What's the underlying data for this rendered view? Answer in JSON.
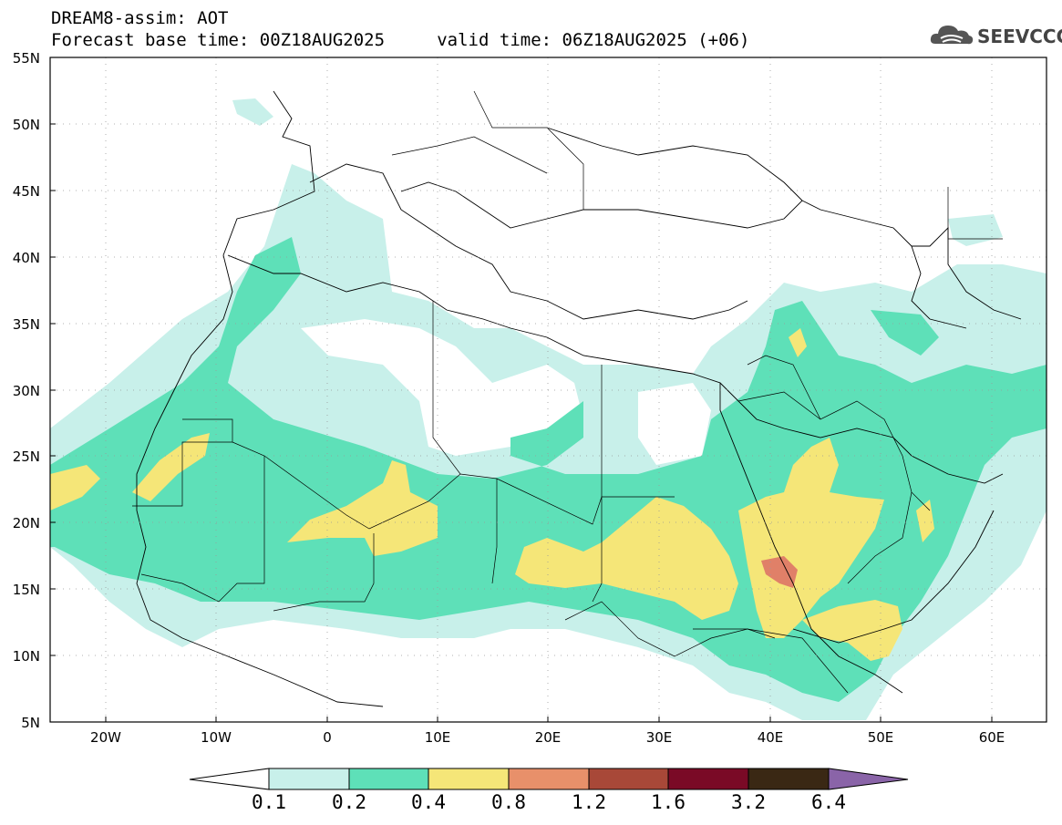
{
  "title": {
    "line1": "DREAM8-assim: AOT",
    "line2": "Forecast base time: 00Z18AUG2025     valid time: 06Z18AUG2025 (+06)"
  },
  "logo": {
    "text": "SEEVCCC",
    "icon": "cloud-logo-icon"
  },
  "axes": {
    "lat_labels": [
      "55N",
      "50N",
      "45N",
      "40N",
      "35N",
      "30N",
      "25N",
      "20N",
      "15N",
      "10N",
      "5N"
    ],
    "lon_labels": [
      "20W",
      "10W",
      "0",
      "10E",
      "20E",
      "30E",
      "40E",
      "50E",
      "60E"
    ]
  },
  "colorbar": {
    "levels": [
      "0.1",
      "0.2",
      "0.4",
      "0.8",
      "1.2",
      "1.6",
      "3.2",
      "6.4"
    ],
    "colors": [
      "#ffffff",
      "#c8f0ea",
      "#5ee0b8",
      "#f5e678",
      "#e8906a",
      "#a84838",
      "#7a0a26",
      "#3a2814",
      "#8a64a8"
    ]
  },
  "map_colors": {
    "light": "#c8f0ea",
    "mid": "#5ee0b8",
    "yellow": "#f5e678",
    "orange": "#e08068"
  }
}
